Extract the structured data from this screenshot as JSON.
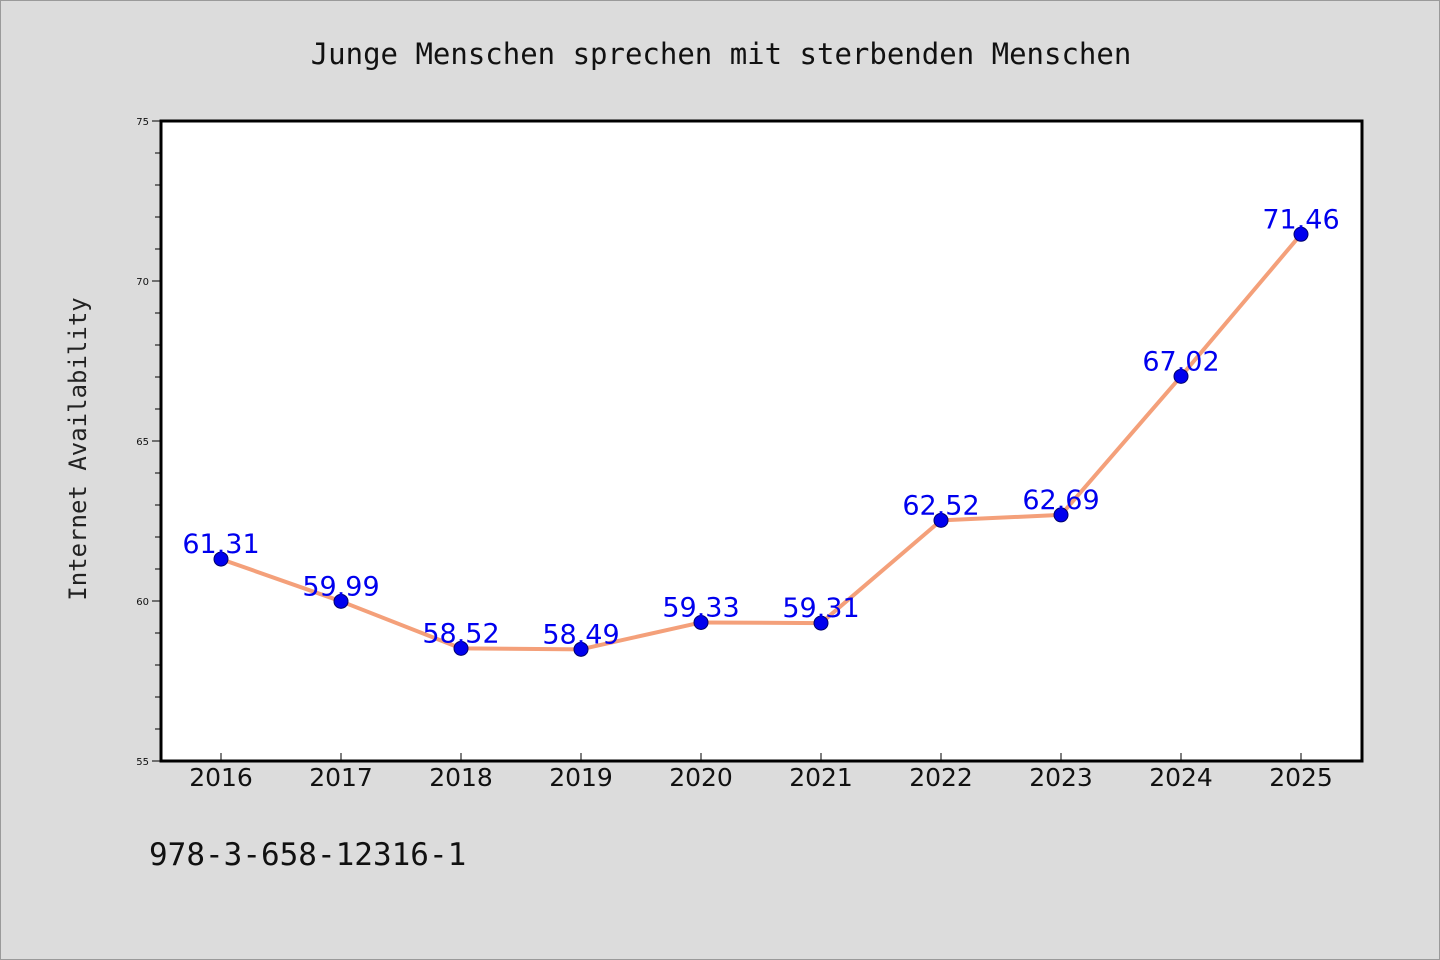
{
  "chart_data": {
    "type": "line",
    "title": "Junge Menschen sprechen mit sterbenden Menschen",
    "xlabel": "",
    "ylabel": "Internet Availability",
    "categories": [
      "2016",
      "2017",
      "2018",
      "2019",
      "2020",
      "2021",
      "2022",
      "2023",
      "2024",
      "2025"
    ],
    "series": [
      {
        "values": [
          61.31,
          59.99,
          58.52,
          58.49,
          59.33,
          59.31,
          62.52,
          62.69,
          67.02,
          71.46
        ]
      }
    ],
    "data_labels": [
      "61.31",
      "59.99",
      "58.52",
      "58.49",
      "59.33",
      "59.31",
      "62.52",
      "62.69",
      "67.02",
      "71.46"
    ],
    "ylim": [
      55,
      75
    ],
    "yticks": [
      55,
      60,
      65,
      70,
      75
    ],
    "ytick_labels": [
      "55",
      "60",
      "65",
      "70",
      "75"
    ],
    "grid": false,
    "legend": "none",
    "colors": {
      "line": "#f4a07a",
      "marker": "#0000ee",
      "marker_edge": "#00006a",
      "data_label": "#0000ee",
      "axes_background": "#ffffff",
      "figure_background": "#dcdcdc"
    }
  },
  "footer": {
    "isbn": "978-3-658-12316-1"
  }
}
